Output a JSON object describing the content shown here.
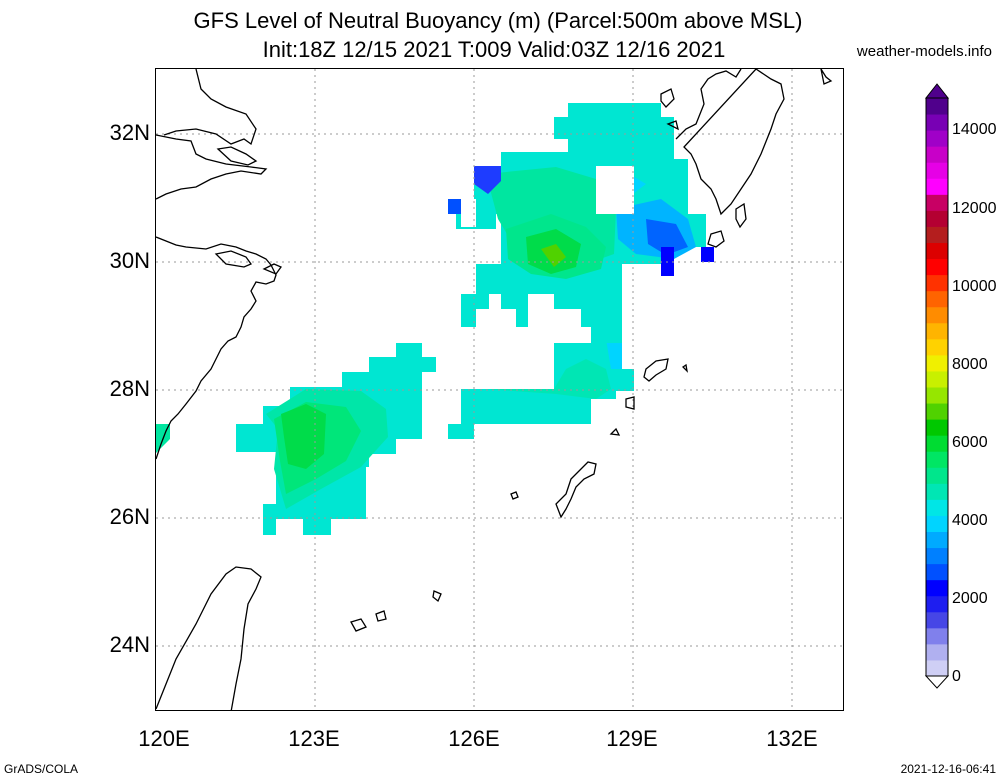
{
  "header": {
    "title_line1": "GFS Level of Neutral Buoyancy (m) (Parcel:500m above MSL)",
    "title_line2": "Init:18Z 12/15 2021 T:009 Valid:03Z 12/16 2021",
    "credit": "weather-models.info"
  },
  "axes": {
    "lat_labels": [
      "32N",
      "30N",
      "28N",
      "26N",
      "24N"
    ],
    "lon_labels": [
      "120E",
      "123E",
      "126E",
      "129E",
      "132E"
    ]
  },
  "colorbar": {
    "labels": [
      "14000",
      "12000",
      "10000",
      "8000",
      "6000",
      "4000",
      "2000",
      "0"
    ],
    "colors": [
      "#cfcff5",
      "#b0b0f0",
      "#8080ec",
      "#4646e6",
      "#1e1ef0",
      "#0000ff",
      "#0050ff",
      "#0080ff",
      "#00aaff",
      "#00d4ff",
      "#00e6e6",
      "#00e6b4",
      "#00e68c",
      "#00e664",
      "#00dc32",
      "#00c800",
      "#50d200",
      "#96e600",
      "#c8f000",
      "#f0f000",
      "#ffd200",
      "#ffb400",
      "#ff8c00",
      "#ff6400",
      "#ff3200",
      "#ff0000",
      "#dc0000",
      "#b41e1e",
      "#b40032",
      "#c80064",
      "#ff00ff",
      "#e600e6",
      "#c800c8",
      "#a000c8",
      "#7800b4",
      "#50008c"
    ]
  },
  "footer": {
    "left": "GrADS/COLA",
    "right": "2021-12-16-06:41"
  }
}
